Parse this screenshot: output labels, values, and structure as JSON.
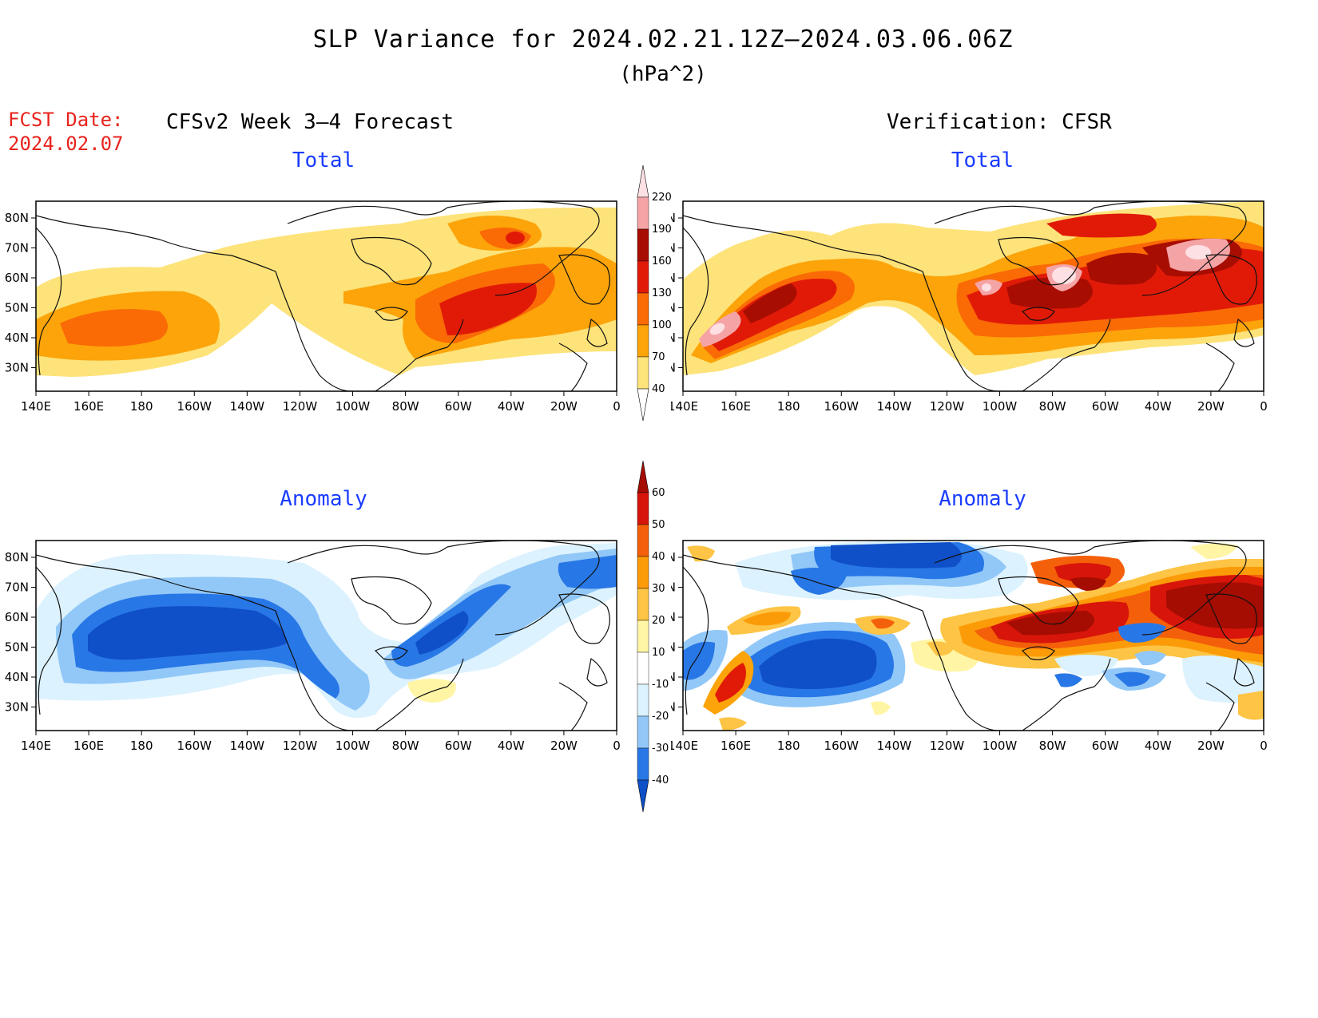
{
  "figure": {
    "title": "SLP Variance for 2024.02.21.12Z–2024.03.06.06Z",
    "units": "(hPa^2)",
    "fcst_label": "FCST Date:",
    "fcst_date": "2024.02.07",
    "left_header": "CFSv2 Week 3–4 Forecast",
    "right_header": "Verification: CFSR"
  },
  "panels": {
    "fcst_total": {
      "subtitle": "Total"
    },
    "fcst_anom": {
      "subtitle": "Anomaly"
    },
    "ver_total": {
      "subtitle": "Total"
    },
    "ver_anom": {
      "subtitle": "Anomaly"
    }
  },
  "axes": {
    "lon_labels": [
      "140E",
      "160E",
      "180",
      "160W",
      "140W",
      "120W",
      "100W",
      "80W",
      "60W",
      "40W",
      "20W",
      "0"
    ],
    "lat_labels": [
      "80N",
      "70N",
      "60N",
      "50N",
      "40N",
      "30N"
    ]
  },
  "colorbars": {
    "total": {
      "levels": [
        "40",
        "70",
        "100",
        "130",
        "160",
        "190",
        "220"
      ],
      "colors": [
        "#ffffff",
        "#fde37a",
        "#fca40a",
        "#fa6a05",
        "#e11a08",
        "#a80d02",
        "#f5a4a6",
        "#fde0e4"
      ]
    },
    "anomaly": {
      "levels": [
        "-40",
        "-30",
        "-20",
        "-10",
        "10",
        "20",
        "30",
        "40",
        "50",
        "60"
      ],
      "colors": [
        "#0f4fc8",
        "#2877e6",
        "#92c8f8",
        "#dcf2fe",
        "#ffffff",
        "#fff5a5",
        "#fdc445",
        "#fc9b08",
        "#f4600a",
        "#d8150a",
        "#a50d02"
      ]
    }
  }
}
